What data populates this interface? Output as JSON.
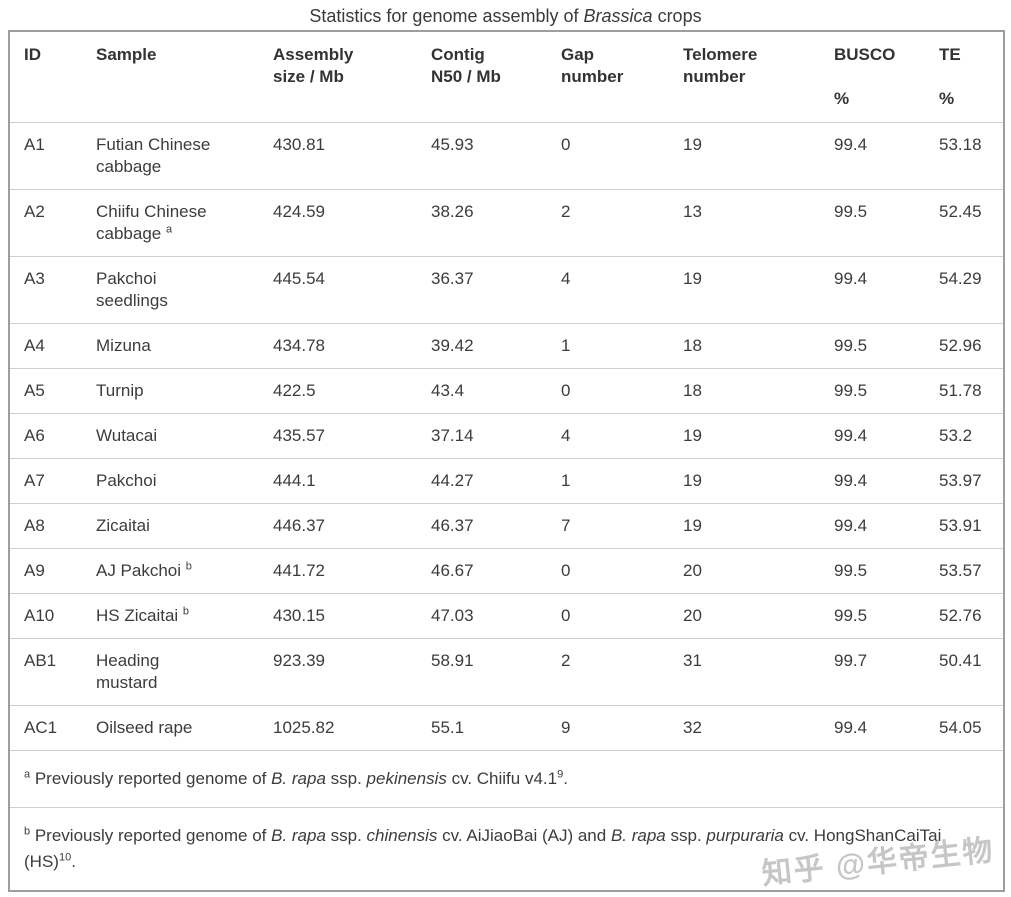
{
  "title": {
    "segments": [
      {
        "text": "Statistics for genome assembly of "
      },
      {
        "text": "Brassica",
        "italic": true
      },
      {
        "text": " crops"
      }
    ]
  },
  "table": {
    "columns": [
      {
        "key": "id",
        "label_lines": [
          "ID"
        ]
      },
      {
        "key": "sample",
        "label_lines": [
          "Sample"
        ]
      },
      {
        "key": "assembly-size",
        "label_lines": [
          "Assembly",
          "size / Mb"
        ]
      },
      {
        "key": "contig-n50",
        "label_lines": [
          "Contig",
          "N50 / Mb"
        ]
      },
      {
        "key": "gap-number",
        "label_lines": [
          "Gap",
          "number"
        ]
      },
      {
        "key": "telomere-number",
        "label_lines": [
          "Telomere",
          "number"
        ]
      },
      {
        "key": "busco-percent",
        "label_lines": [
          "BUSCO",
          "",
          "%"
        ]
      },
      {
        "key": "te-percent",
        "label_lines": [
          "TE",
          "",
          "%"
        ]
      }
    ],
    "rows": [
      {
        "id": "A1",
        "sample": "Futian Chinese\ncabbage",
        "sample_sup": "",
        "assembly": "430.81",
        "contig": "45.93",
        "gap": "0",
        "telomere": "19",
        "busco": "99.4",
        "te": "53.18"
      },
      {
        "id": "A2",
        "sample": "Chiifu Chinese\ncabbage",
        "sample_sup": "a",
        "assembly": "424.59",
        "contig": "38.26",
        "gap": "2",
        "telomere": "13",
        "busco": "99.5",
        "te": "52.45"
      },
      {
        "id": "A3",
        "sample": "Pakchoi\nseedlings",
        "sample_sup": "",
        "assembly": "445.54",
        "contig": "36.37",
        "gap": "4",
        "telomere": "19",
        "busco": "99.4",
        "te": "54.29"
      },
      {
        "id": "A4",
        "sample": "Mizuna",
        "sample_sup": "",
        "assembly": "434.78",
        "contig": "39.42",
        "gap": "1",
        "telomere": "18",
        "busco": "99.5",
        "te": "52.96"
      },
      {
        "id": "A5",
        "sample": "Turnip",
        "sample_sup": "",
        "assembly": "422.5",
        "contig": "43.4",
        "gap": "0",
        "telomere": "18",
        "busco": "99.5",
        "te": "51.78"
      },
      {
        "id": "A6",
        "sample": "Wutacai",
        "sample_sup": "",
        "assembly": "435.57",
        "contig": "37.14",
        "gap": "4",
        "telomere": "19",
        "busco": "99.4",
        "te": "53.2"
      },
      {
        "id": "A7",
        "sample": "Pakchoi",
        "sample_sup": "",
        "assembly": "444.1",
        "contig": "44.27",
        "gap": "1",
        "telomere": "19",
        "busco": "99.4",
        "te": "53.97"
      },
      {
        "id": "A8",
        "sample": "Zicaitai",
        "sample_sup": "",
        "assembly": "446.37",
        "contig": "46.37",
        "gap": "7",
        "telomere": "19",
        "busco": "99.4",
        "te": "53.91"
      },
      {
        "id": "A9",
        "sample": "AJ Pakchoi",
        "sample_sup": "b",
        "assembly": "441.72",
        "contig": "46.67",
        "gap": "0",
        "telomere": "20",
        "busco": "99.5",
        "te": "53.57"
      },
      {
        "id": "A10",
        "sample": "HS Zicaitai",
        "sample_sup": "b",
        "assembly": "430.15",
        "contig": "47.03",
        "gap": "0",
        "telomere": "20",
        "busco": "99.5",
        "te": "52.76"
      },
      {
        "id": "AB1",
        "sample": "Heading\nmustard",
        "sample_sup": "",
        "assembly": "923.39",
        "contig": "58.91",
        "gap": "2",
        "telomere": "31",
        "busco": "99.7",
        "te": "50.41"
      },
      {
        "id": "AC1",
        "sample": "Oilseed rape",
        "sample_sup": "",
        "assembly": "1025.82",
        "contig": "55.1",
        "gap": "9",
        "telomere": "32",
        "busco": "99.4",
        "te": "54.05"
      }
    ]
  },
  "footnotes": [
    {
      "marker": "a",
      "segments": [
        {
          "text": " Previously reported genome of "
        },
        {
          "text": "B. rapa",
          "italic": true
        },
        {
          "text": " ssp. "
        },
        {
          "text": "pekinensis",
          "italic": true
        },
        {
          "text": " cv. Chiifu v4.1"
        },
        {
          "text": "9",
          "sup": true
        },
        {
          "text": "."
        }
      ]
    },
    {
      "marker": "b",
      "segments": [
        {
          "text": " Previously reported genome of "
        },
        {
          "text": "B. rapa",
          "italic": true
        },
        {
          "text": " ssp. "
        },
        {
          "text": "chinensis",
          "italic": true
        },
        {
          "text": " cv. AiJiaoBai (AJ) and "
        },
        {
          "text": "B. rapa",
          "italic": true
        },
        {
          "text": " ssp. "
        },
        {
          "text": "purpuraria",
          "italic": true
        },
        {
          "text": " cv. HongShanCaiTai (HS)"
        },
        {
          "text": "10",
          "sup": true
        },
        {
          "text": "."
        }
      ]
    }
  ],
  "watermark": {
    "text": "知乎 @华帝生物"
  }
}
